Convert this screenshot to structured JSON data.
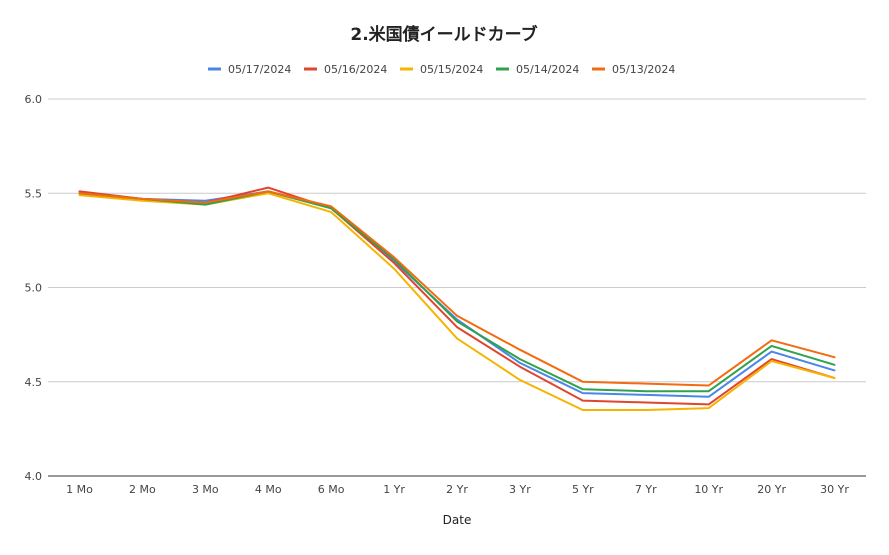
{
  "chart_data": {
    "type": "line",
    "title": "2.米国債イールドカーブ",
    "xlabel": "Date",
    "ylabel": "",
    "ylim": [
      4.0,
      6.0
    ],
    "yticks": [
      "4.0",
      "4.5",
      "5.0",
      "5.5",
      "6.0"
    ],
    "grid": true,
    "legend_position": "top",
    "categories": [
      "1 Mo",
      "2 Mo",
      "3 Mo",
      "4 Mo",
      "6 Mo",
      "1 Yr",
      "2 Yr",
      "3 Yr",
      "5 Yr",
      "7 Yr",
      "10 Yr",
      "20 Yr",
      "30 Yr"
    ],
    "series": [
      {
        "name": "05/17/2024",
        "color": "#4a86e8",
        "values": [
          5.5,
          5.47,
          5.46,
          5.51,
          5.42,
          5.14,
          4.83,
          4.6,
          4.44,
          4.43,
          4.42,
          4.66,
          4.56
        ]
      },
      {
        "name": "05/16/2024",
        "color": "#e0452f",
        "values": [
          5.51,
          5.47,
          5.45,
          5.53,
          5.42,
          5.13,
          4.79,
          4.58,
          4.4,
          4.39,
          4.38,
          4.62,
          4.52
        ]
      },
      {
        "name": "05/15/2024",
        "color": "#f6b400",
        "values": [
          5.49,
          5.46,
          5.44,
          5.5,
          5.4,
          5.1,
          4.73,
          4.51,
          4.35,
          4.35,
          4.36,
          4.61,
          4.52
        ]
      },
      {
        "name": "05/14/2024",
        "color": "#2fa24c",
        "values": [
          5.5,
          5.47,
          5.44,
          5.51,
          5.42,
          5.15,
          4.82,
          4.62,
          4.46,
          4.45,
          4.45,
          4.69,
          4.59
        ]
      },
      {
        "name": "05/13/2024",
        "color": "#f26b0f",
        "values": [
          5.5,
          5.47,
          5.45,
          5.51,
          5.43,
          5.16,
          4.85,
          4.67,
          4.5,
          4.49,
          4.48,
          4.72,
          4.63
        ]
      }
    ]
  }
}
